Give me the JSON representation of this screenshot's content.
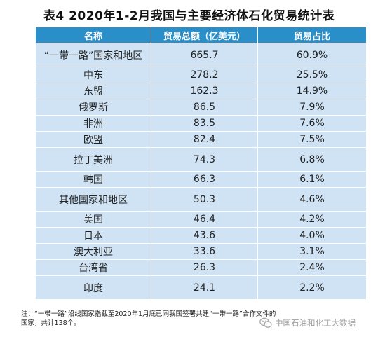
{
  "title": "表4   2020年1-2月我国与主要经济体石化贸易统计表",
  "table": {
    "headers": [
      "名称",
      "贸易总额（亿美元）",
      "贸易占比"
    ],
    "rows": [
      [
        "“一带一路”国家和地区",
        "665.7",
        "60.9%"
      ],
      [
        "中东",
        "278.2",
        "25.5%"
      ],
      [
        "东盟",
        "162.3",
        "14.9%"
      ],
      [
        "俄罗斯",
        "86.5",
        "7.9%"
      ],
      [
        "非洲",
        "83.5",
        "7.6%"
      ],
      [
        "欧盟",
        "82.4",
        "7.5%"
      ],
      [
        "拉丁美洲",
        "74.3",
        "6.8%"
      ],
      [
        "韩国",
        "66.3",
        "6.1%"
      ],
      [
        "其他国家和地区",
        "50.3",
        "4.6%"
      ],
      [
        "美国",
        "46.4",
        "4.2%"
      ],
      [
        "日本",
        "43.6",
        "4.0%"
      ],
      [
        "澳大利亚",
        "33.6",
        "3.1%"
      ],
      [
        "台湾省",
        "26.3",
        "2.4%"
      ],
      [
        "印度",
        "24.1",
        "2.2%"
      ]
    ]
  },
  "note": {
    "line1": "注：“一带一路”沿线国家指截至2020年1月底已同我国签署共建“一带一路”合作文件的",
    "line2": "国家，共计138个。"
  },
  "watermark": {
    "text": "中国石油和化工大数据",
    "icon": "wechat-icon"
  }
}
